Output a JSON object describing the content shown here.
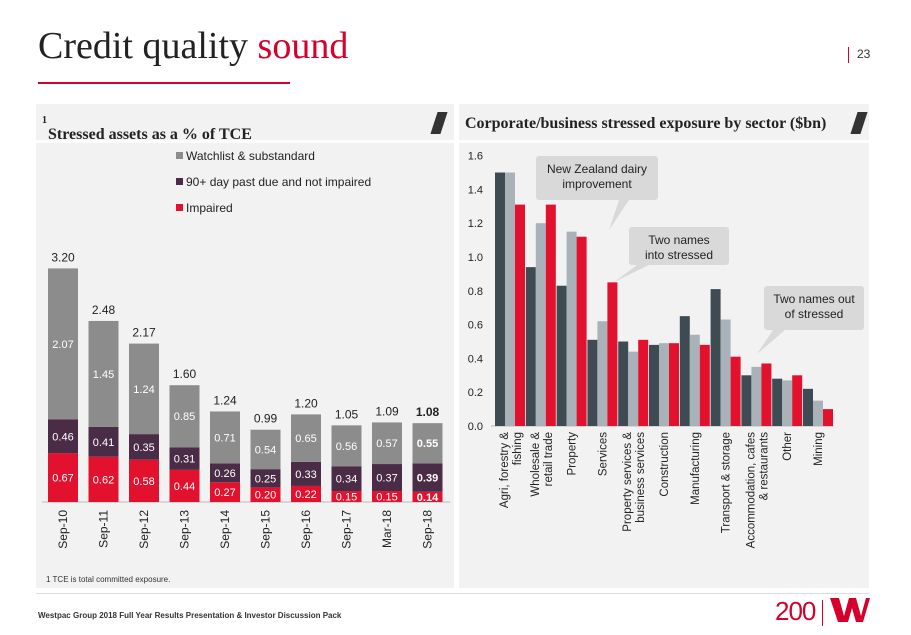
{
  "page": {
    "title_main": "Credit quality ",
    "title_accent": "sound",
    "page_number": "23",
    "footnote": "1 TCE is total committed exposure.",
    "footer": "Westpac Group 2018 Full Year Results Presentation & Investor Discussion Pack",
    "logo_text": "200"
  },
  "colors": {
    "accent": "#d5002b",
    "watchlist": "#8c8c8c",
    "past_due": "#4a2c46",
    "impaired": "#e2122e",
    "dark_bar": "#3e4b53",
    "light_bar": "#a9b2b9",
    "red_bar": "#e2122e"
  },
  "chart_data": [
    {
      "type": "bar",
      "stacked": true,
      "title": "Stressed assets as a % of TCE",
      "title_sup": "1",
      "categories": [
        "Sep-10",
        "Sep-11",
        "Sep-12",
        "Sep-13",
        "Sep-14",
        "Sep-15",
        "Sep-16",
        "Sep-17",
        "Mar-18",
        "Sep-18"
      ],
      "series": [
        {
          "name": "Impaired",
          "values": [
            0.67,
            0.62,
            0.58,
            0.44,
            0.27,
            0.2,
            0.22,
            0.15,
            0.15,
            0.14
          ]
        },
        {
          "name": "90+ day past due and not impaired",
          "values": [
            0.46,
            0.41,
            0.35,
            0.31,
            0.26,
            0.25,
            0.33,
            0.34,
            0.37,
            0.39
          ]
        },
        {
          "name": "Watchlist & substandard",
          "values": [
            2.07,
            1.45,
            1.24,
            0.85,
            0.71,
            0.54,
            0.65,
            0.56,
            0.57,
            0.55
          ]
        }
      ],
      "totals": [
        3.2,
        2.48,
        2.17,
        1.6,
        1.24,
        0.99,
        1.2,
        1.05,
        1.09,
        1.08
      ],
      "labels": {
        "totals": [
          "3.20",
          "2.48",
          "2.17",
          "1.60",
          "1.24",
          "0.99",
          "1.20",
          "1.05",
          "1.09",
          "1.08"
        ],
        "Impaired": [
          "0.67",
          "0.62",
          "0.58",
          "0.44",
          "0.27",
          "0.20",
          "0.22",
          "0.15",
          "0.15",
          "0.14"
        ],
        "90+ day past due and not impaired": [
          "0.46",
          "0.41",
          "0.35",
          "0.31",
          "0.26",
          "0.25",
          "0.33",
          "0.34",
          "0.37",
          "0.39"
        ],
        "Watchlist & substandard": [
          "2.07",
          "1.45",
          "1.24",
          "0.85",
          "0.71",
          "0.54",
          "0.65",
          "0.56",
          "0.57",
          "0.55"
        ]
      },
      "legend_order": [
        "Watchlist & substandard",
        "90+ day past due and not impaired",
        "Impaired"
      ],
      "legend_position": "top-right",
      "bold_last": true,
      "ylim": [
        0,
        3.3
      ]
    },
    {
      "type": "bar",
      "title": "Corporate/business stressed exposure by sector ($bn)",
      "categories": [
        "Agri, forestry & fishing",
        "Wholesale & retail trade",
        "Property",
        "Services",
        "Property services & business services",
        "Construction",
        "Manufacturing",
        "Transport & storage",
        "Accommodation, cafes & restaurants",
        "Other",
        "Mining"
      ],
      "category_lines": [
        [
          "Agri, forestry &",
          "fishing"
        ],
        [
          "Wholesale &",
          "retail trade"
        ],
        [
          "Property"
        ],
        [
          "Services"
        ],
        [
          "Property services &",
          "business services"
        ],
        [
          "Construction"
        ],
        [
          "Manufacturing"
        ],
        [
          "Transport & storage"
        ],
        [
          "Accommodation, cafes",
          "& restaurants"
        ],
        [
          "Other"
        ],
        [
          "Mining"
        ]
      ],
      "series": [
        {
          "name": "Series 1",
          "values": [
            1.5,
            0.94,
            0.83,
            0.51,
            0.5,
            0.48,
            0.65,
            0.81,
            0.3,
            0.28,
            0.22
          ]
        },
        {
          "name": "Series 2",
          "values": [
            1.5,
            1.2,
            1.15,
            0.62,
            0.44,
            0.49,
            0.54,
            0.63,
            0.35,
            0.27,
            0.15
          ]
        },
        {
          "name": "Series 3",
          "values": [
            1.31,
            1.31,
            1.12,
            0.85,
            0.51,
            0.49,
            0.48,
            0.41,
            0.37,
            0.3,
            0.1
          ]
        }
      ],
      "yticks": [
        0.0,
        0.2,
        0.4,
        0.6,
        0.8,
        1.0,
        1.2,
        1.4,
        1.6
      ],
      "ytick_labels": [
        "0.0",
        "0.2",
        "0.4",
        "0.6",
        "0.8",
        "1.0",
        "1.2",
        "1.4",
        "1.6"
      ],
      "ylim": [
        0,
        1.6
      ],
      "annotations": [
        {
          "text": [
            "New Zealand dairy",
            "improvement"
          ],
          "category": "Agri, forestry & fishing"
        },
        {
          "text": [
            "Two names",
            "into stressed"
          ],
          "category": "Services"
        },
        {
          "text": [
            "Two names out",
            "of stressed"
          ],
          "category": "Transport & storage"
        }
      ]
    }
  ]
}
